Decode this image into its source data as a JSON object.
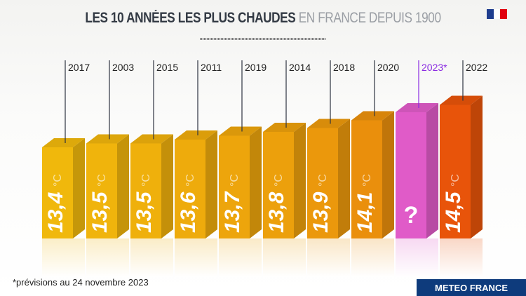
{
  "header": {
    "title_bold": "LES 10 ANNÉES LES PLUS CHAUDES",
    "title_light": "EN FRANCE DEPUIS 1900",
    "flag_colors": [
      "#1f3e8f",
      "#ffffff",
      "#e1000f"
    ]
  },
  "chart_data": {
    "type": "bar",
    "title": "LES 10 ANNÉES LES PLUS CHAUDES EN FRANCE DEPUIS 1900",
    "categories": [
      "2017",
      "2003",
      "2015",
      "2011",
      "2019",
      "2014",
      "2018",
      "2020",
      "2023*",
      "2022"
    ],
    "values": [
      13.4,
      13.5,
      13.5,
      13.6,
      13.7,
      13.8,
      13.9,
      14.1,
      null,
      14.5
    ],
    "labels": [
      "13,4",
      "13,5",
      "13,5",
      "13,6",
      "13,7",
      "13,8",
      "13,9",
      "14,1",
      "?",
      "14,5"
    ],
    "unit": "°C",
    "colors": [
      "#f0b80c",
      "#f0b40c",
      "#efb00c",
      "#eeab0c",
      "#eda50c",
      "#eca00c",
      "#eb980c",
      "#ea8f0c",
      "#e05bc8",
      "#e8540a"
    ],
    "highlight_label_color": "#8a2be2",
    "grid": false,
    "legend": "none"
  },
  "footer": {
    "note": "*prévisions au 24 novembre 2023",
    "brand": "METEO FRANCE"
  }
}
